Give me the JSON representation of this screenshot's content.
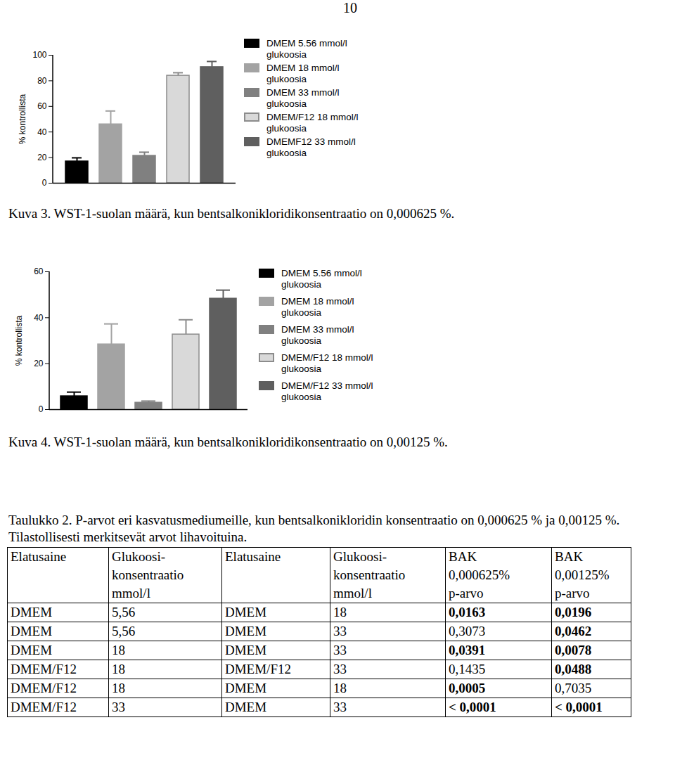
{
  "page_number": "10",
  "chart_data": [
    {
      "type": "bar",
      "title": "Kuva 3. WST-1-suolan määrä, kun bentsalkonikloridikonsentraatio on 0,000625 %.",
      "ylabel": "% kontrollista",
      "categories": [
        null
      ],
      "series": [
        {
          "name": "DMEM 5.56 mmol/l glukoosia",
          "color": "#000000",
          "values": [
            17
          ],
          "errors": [
            2.8
          ]
        },
        {
          "name": "DMEM 18 mmol/l glukoosia",
          "color": "#a3a3a3",
          "values": [
            46
          ],
          "errors": [
            10.4
          ]
        },
        {
          "name": "DMEM 33 mmol/l glukoosia",
          "color": "#808080",
          "values": [
            21.4
          ],
          "errors": [
            2.8
          ]
        },
        {
          "name": "DMEM/F12 18 mmol/l glukoosia",
          "color": "#d9d9d9",
          "values": [
            84
          ],
          "errors": [
            2.3
          ]
        },
        {
          "name": "DMEMF12 33 mmol/l glukoosia",
          "color": "#5f5f5f",
          "values": [
            90.7
          ],
          "errors": [
            4.4
          ]
        }
      ],
      "ylim": [
        0,
        100
      ],
      "yticks": [
        0,
        20,
        40,
        60,
        80,
        100
      ],
      "legend": "right",
      "grid": false
    },
    {
      "type": "bar",
      "title": "Kuva 4. WST-1-suolan määrä, kun bentsalkonikloridikonsentraatio on 0,00125 %.",
      "ylabel": "% kontrollista",
      "categories": [
        null
      ],
      "series": [
        {
          "name": "DMEM 5.56 mmol/l glukoosia",
          "color": "#000000",
          "values": [
            5.8
          ],
          "errors": [
            1.8
          ]
        },
        {
          "name": "DMEM 18 mmol/l glukoosia",
          "color": "#a3a3a3",
          "values": [
            28.4
          ],
          "errors": [
            8.9
          ]
        },
        {
          "name": "DMEM 33 mmol/l glukoosia",
          "color": "#808080",
          "values": [
            3
          ],
          "errors": [
            0.7
          ]
        },
        {
          "name": "DMEM/F12 18 mmol/l glukoosia",
          "color": "#d9d9d9",
          "values": [
            32.7
          ],
          "errors": [
            6.4
          ]
        },
        {
          "name": "DMEM/F12 33 mmol/l glukoosia",
          "color": "#5f5f5f",
          "values": [
            48.3
          ],
          "errors": [
            3.7
          ]
        }
      ],
      "ylim": [
        0,
        60
      ],
      "yticks": [
        0,
        20,
        40,
        60
      ],
      "legend": "right",
      "grid": false
    }
  ],
  "table": {
    "title": "Taulukko 2. P-arvot eri kasvatusmediumeille, kun bentsalkonikloridin konsentraatio on 0,000625 % ja 0,00125 %. Tilastollisesti merkitsevät arvot lihavoituina.",
    "header": [
      "Elatusaine",
      "Glukoosi-\nkonsentraatio\nmmol/l",
      "Elatusaine",
      "Glukoosi-\nkonsentraatio\nmmol/l",
      "BAK\n0,000625%\np-arvo",
      "BAK\n0,00125%\np-arvo"
    ],
    "rows": [
      [
        "DMEM",
        "5,56",
        "DMEM",
        "18",
        {
          "text": "0,0163",
          "bold": true
        },
        {
          "text": "0,0196",
          "bold": true
        }
      ],
      [
        "DMEM",
        "5,56",
        "DMEM",
        "33",
        "0,3073",
        {
          "text": "0,0462",
          "bold": true
        }
      ],
      [
        "DMEM",
        "18",
        "DMEM",
        "33",
        {
          "text": "0,0391",
          "bold": true
        },
        {
          "text": "0,0078",
          "bold": true
        }
      ],
      [
        "DMEM/F12",
        "18",
        "DMEM/F12",
        "33",
        "0,1435",
        {
          "text": "0,0488",
          "bold": true
        }
      ],
      [
        "DMEM/F12",
        "18",
        "DMEM",
        "18",
        {
          "text": "0,0005",
          "bold": true
        },
        "0,7035"
      ],
      [
        "DMEM/F12",
        "33",
        "DMEM",
        "33",
        {
          "text": "< 0,0001",
          "bold": true
        },
        {
          "text": "< 0,0001",
          "bold": true
        }
      ]
    ]
  }
}
